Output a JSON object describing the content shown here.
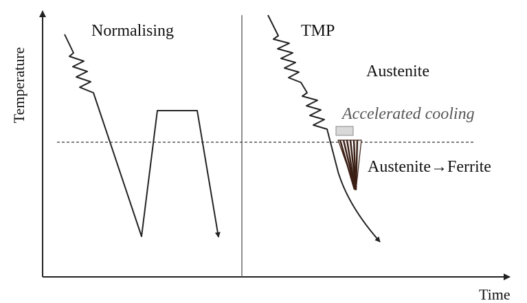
{
  "diagram": {
    "xlabel": "Time",
    "ylabel": "Temperature",
    "left_panel": {
      "title": "Normalising"
    },
    "right_panel": {
      "title": "TMP",
      "phase_label": "Austenite",
      "cooling_label": "Accelerated cooling",
      "transformation_label": "Austenite→Ferrite"
    }
  },
  "colors": {
    "line": "#222222",
    "annotation": "#555555",
    "cooling_block": "#d9d9d9",
    "stripe_dark": "#3a1f14",
    "stripe_light": "#f2f2f2"
  }
}
